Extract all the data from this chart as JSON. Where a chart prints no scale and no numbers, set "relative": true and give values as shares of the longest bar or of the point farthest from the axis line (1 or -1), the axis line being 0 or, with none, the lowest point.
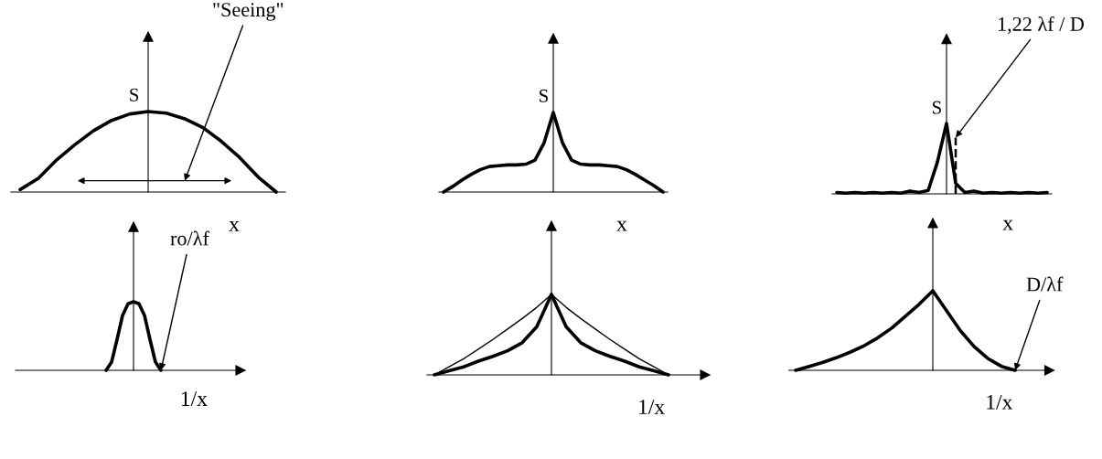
{
  "chart_data": [
    {
      "type": "line",
      "relative": true,
      "ylabel": "S",
      "xlabel": "x",
      "categories": [
        null,
        null,
        null,
        null,
        null,
        null,
        null,
        null,
        null,
        null,
        null,
        null,
        null,
        null,
        null
      ],
      "series": [
        {
          "color": "#000000",
          "values": [
            0.03,
            0.17,
            0.4,
            0.59,
            0.76,
            0.89,
            0.97,
            1.0,
            0.98,
            0.91,
            0.8,
            0.63,
            0.43,
            0.19,
            0
          ]
        }
      ],
      "annotations": [
        "\"Seeing\""
      ]
    },
    {
      "type": "line",
      "relative": true,
      "ylabel": "S",
      "xlabel": "x",
      "categories": [
        null,
        null,
        null,
        null,
        null,
        null,
        null,
        null,
        null,
        null,
        null,
        null,
        null,
        null,
        null,
        null,
        null,
        null,
        null,
        null,
        null,
        null,
        null,
        null,
        null
      ],
      "series": [
        {
          "color": "#000000",
          "values": [
            0,
            0.07,
            0.15,
            0.22,
            0.28,
            0.32,
            0.33,
            0.34,
            0.34,
            0.35,
            0.4,
            0.62,
            1.0,
            0.62,
            0.4,
            0.35,
            0.34,
            0.34,
            0.33,
            0.32,
            0.28,
            0.22,
            0.15,
            0.08,
            0
          ]
        }
      ]
    },
    {
      "type": "line",
      "relative": true,
      "ylabel": "S",
      "xlabel": "x",
      "categories": [
        null,
        null,
        null,
        null,
        null,
        null,
        null,
        null,
        null,
        null,
        null,
        null,
        null,
        null,
        null,
        null,
        null,
        null,
        null,
        null,
        null,
        null,
        null,
        null
      ],
      "series": [
        {
          "color": "#000000",
          "values": [
            0.02,
            0.01,
            0.02,
            0.01,
            0.02,
            0.01,
            0.02,
            0.01,
            0.04,
            0.02,
            0.05,
            0.45,
            1.0,
            0.15,
            0.02,
            0.04,
            0.01,
            0.02,
            0.01,
            0.02,
            0.01,
            0.02,
            0.01,
            0.02
          ]
        }
      ],
      "annotations": [
        "1,22 λf / D"
      ]
    },
    {
      "type": "line",
      "relative": true,
      "xlabel": "1/x",
      "categories": [
        null,
        null,
        null,
        null,
        null,
        null,
        null,
        null,
        null,
        null,
        null,
        null,
        null,
        null,
        null,
        null,
        null,
        null,
        null,
        null,
        null,
        null,
        null,
        null,
        null,
        null,
        null,
        null,
        null,
        null,
        null,
        null,
        null,
        null,
        null,
        null,
        null,
        null,
        null,
        null,
        null
      ],
      "series": [
        {
          "color": "#000000",
          "values": [
            null,
            null,
            null,
            null,
            null,
            null,
            null,
            null,
            null,
            null,
            null,
            null,
            null,
            null,
            null,
            null,
            0,
            0.12,
            0.45,
            0.8,
            0.97,
            1.0,
            0.97,
            0.8,
            0.45,
            0.12,
            0,
            null,
            null,
            null,
            null,
            null,
            null,
            null,
            null,
            null,
            null,
            null,
            null,
            null,
            null
          ]
        }
      ],
      "annotations": [
        "ro/λf"
      ]
    },
    {
      "type": "line",
      "relative": true,
      "xlabel": "1/x",
      "categories": [
        null,
        null,
        null,
        null,
        null,
        null,
        null,
        null,
        null,
        null,
        null,
        null,
        null,
        null,
        null,
        null,
        null,
        null,
        null
      ],
      "series": [
        {
          "color": "#000000",
          "values": [
            0,
            0.1,
            0.2,
            0.32,
            0.44,
            0.57,
            0.7,
            0.84,
            1.0,
            0.84,
            0.7,
            0.57,
            0.44,
            0.32,
            0.2,
            0.1,
            0,
            null,
            null
          ]
        },
        {
          "color": "#000000",
          "values": [
            0,
            0.05,
            0.1,
            0.17,
            0.23,
            0.3,
            0.4,
            0.6,
            1.0,
            0.6,
            0.4,
            0.3,
            0.23,
            0.17,
            0.1,
            0.05,
            0,
            null,
            null
          ]
        }
      ]
    },
    {
      "type": "line",
      "relative": true,
      "xlabel": "1/x",
      "categories": [
        null,
        null,
        null,
        null,
        null,
        null,
        null,
        null,
        null,
        null,
        null,
        null,
        null,
        null,
        null,
        null,
        null,
        null,
        null
      ],
      "series": [
        {
          "color": "#000000",
          "values": [
            0,
            0.05,
            0.1,
            0.16,
            0.23,
            0.31,
            0.41,
            0.53,
            0.68,
            0.83,
            1.0,
            0.75,
            0.5,
            0.3,
            0.15,
            0.05,
            0,
            null,
            null
          ]
        }
      ],
      "annotations": [
        "D/λf"
      ]
    }
  ]
}
